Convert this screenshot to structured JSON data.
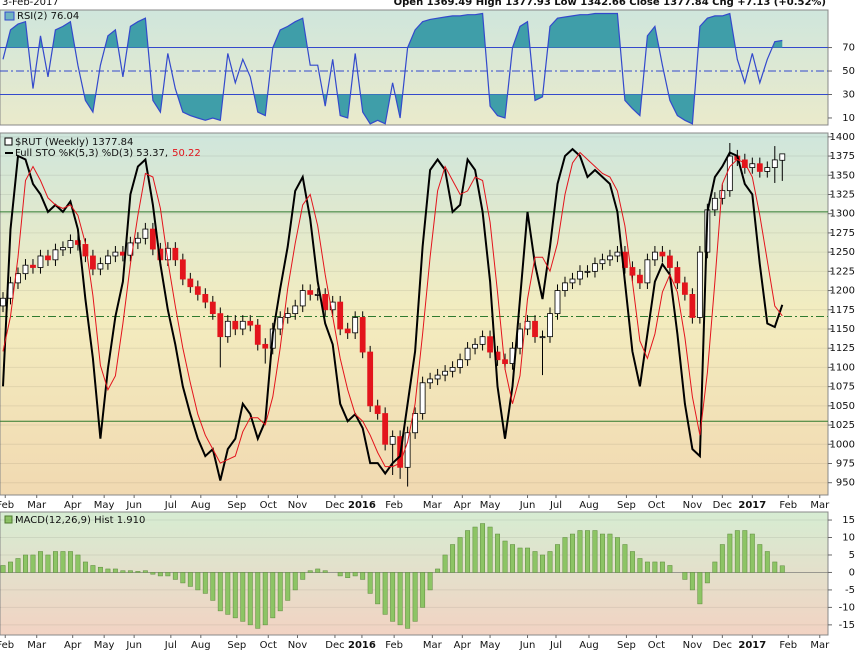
{
  "header": {
    "date": "3-Feb-2017",
    "quote": "Open 1369.49  High 1377.93  Low 1342.66  Close 1377.84  Chg +7.13 (+0.52%)"
  },
  "chart_data": [
    {
      "type": "line",
      "title": "RSI(2) 76.04",
      "color": "#3349cc",
      "fill_color": "#3f9ea9",
      "values": [
        60,
        85,
        90,
        92,
        35,
        80,
        45,
        85,
        88,
        92,
        55,
        25,
        15,
        55,
        80,
        85,
        45,
        88,
        92,
        95,
        25,
        15,
        65,
        35,
        15,
        12,
        10,
        8,
        10,
        8,
        65,
        40,
        60,
        45,
        15,
        12,
        70,
        85,
        88,
        92,
        95,
        55,
        55,
        20,
        60,
        12,
        10,
        65,
        15,
        5,
        8,
        5,
        40,
        10,
        70,
        85,
        92,
        94,
        95,
        96,
        97,
        97,
        98,
        98,
        99,
        20,
        12,
        10,
        70,
        88,
        92,
        25,
        28,
        88,
        95,
        96,
        97,
        98,
        98,
        99,
        99,
        99,
        99,
        25,
        18,
        12,
        80,
        88,
        55,
        25,
        12,
        8,
        5,
        88,
        95,
        97,
        97,
        99,
        60,
        40,
        65,
        40,
        60,
        75,
        76.04
      ],
      "levels": [
        30,
        70
      ],
      "dashed_levels": [
        50
      ],
      "ylim": [
        4,
        102
      ],
      "yticks": [
        10,
        30,
        50,
        70
      ],
      "xlim": [
        -0.4,
        110.1
      ]
    },
    {
      "type": "candlestick",
      "title": "$RUT (Weekly) 1377.84",
      "subtitle": "Full STO %K(5,3) %D(3) 53.37,",
      "subtitle_note": "50.22",
      "up_color": "#ffffff",
      "down_color": "#e3141c",
      "open": [
        1180,
        1190,
        1210,
        1222,
        1233,
        1230,
        1245,
        1240,
        1253,
        1256,
        1265,
        1260,
        1245,
        1228,
        1235,
        1245,
        1250,
        1246,
        1262,
        1268,
        1280,
        1254,
        1240,
        1255,
        1240,
        1215,
        1205,
        1195,
        1185,
        1170,
        1140,
        1160,
        1150,
        1160,
        1155,
        1130,
        1125,
        1150,
        1165,
        1170,
        1180,
        1200,
        1195,
        1195,
        1175,
        1185,
        1150,
        1145,
        1165,
        1120,
        1050,
        1040,
        1000,
        1010,
        970,
        1015,
        1040,
        1080,
        1085,
        1090,
        1095,
        1100,
        1110,
        1125,
        1130,
        1140,
        1120,
        1110,
        1105,
        1125,
        1150,
        1160,
        1140,
        1140,
        1170,
        1200,
        1210,
        1215,
        1225,
        1225,
        1235,
        1240,
        1245,
        1250,
        1230,
        1220,
        1210,
        1240,
        1250,
        1245,
        1230,
        1210,
        1195,
        1165,
        1250,
        1305,
        1320,
        1330,
        1375,
        1370,
        1360,
        1365,
        1355,
        1360,
        1369.49
      ],
      "high": [
        1198,
        1218,
        1230,
        1241,
        1241,
        1253,
        1253,
        1261,
        1264,
        1273,
        1273,
        1268,
        1253,
        1243,
        1253,
        1258,
        1258,
        1270,
        1276,
        1288,
        1288,
        1262,
        1263,
        1263,
        1248,
        1223,
        1213,
        1203,
        1193,
        1178,
        1168,
        1168,
        1168,
        1168,
        1163,
        1138,
        1158,
        1173,
        1178,
        1188,
        1208,
        1208,
        1203,
        1203,
        1193,
        1193,
        1158,
        1173,
        1173,
        1128,
        1058,
        1048,
        1018,
        1018,
        1023,
        1048,
        1088,
        1093,
        1098,
        1103,
        1108,
        1118,
        1133,
        1138,
        1148,
        1148,
        1128,
        1118,
        1133,
        1158,
        1168,
        1168,
        1148,
        1178,
        1208,
        1218,
        1223,
        1233,
        1233,
        1243,
        1248,
        1253,
        1258,
        1258,
        1238,
        1228,
        1248,
        1258,
        1258,
        1253,
        1238,
        1218,
        1203,
        1258,
        1313,
        1328,
        1338,
        1392,
        1383,
        1378,
        1373,
        1373,
        1368,
        1388,
        1377.93
      ],
      "low": [
        1172,
        1182,
        1202,
        1214,
        1222,
        1222,
        1232,
        1232,
        1245,
        1248,
        1252,
        1237,
        1220,
        1220,
        1227,
        1237,
        1238,
        1238,
        1254,
        1260,
        1246,
        1232,
        1232,
        1232,
        1207,
        1197,
        1187,
        1177,
        1162,
        1100,
        1132,
        1142,
        1142,
        1147,
        1122,
        1105,
        1117,
        1142,
        1157,
        1162,
        1172,
        1187,
        1187,
        1167,
        1167,
        1142,
        1137,
        1137,
        1112,
        1042,
        1032,
        992,
        960,
        955,
        945,
        1007,
        1032,
        1072,
        1077,
        1082,
        1087,
        1092,
        1102,
        1117,
        1122,
        1112,
        1102,
        1097,
        1097,
        1117,
        1142,
        1132,
        1090,
        1132,
        1162,
        1192,
        1202,
        1207,
        1217,
        1217,
        1227,
        1232,
        1237,
        1222,
        1212,
        1202,
        1202,
        1232,
        1237,
        1222,
        1202,
        1187,
        1157,
        1157,
        1242,
        1297,
        1312,
        1322,
        1362,
        1352,
        1352,
        1347,
        1347,
        1340,
        1342.66
      ],
      "close": [
        1190,
        1210,
        1222,
        1233,
        1230,
        1245,
        1240,
        1253,
        1256,
        1265,
        1260,
        1245,
        1228,
        1235,
        1245,
        1250,
        1246,
        1262,
        1268,
        1280,
        1254,
        1240,
        1255,
        1240,
        1215,
        1205,
        1195,
        1185,
        1170,
        1140,
        1160,
        1150,
        1160,
        1155,
        1130,
        1125,
        1150,
        1165,
        1170,
        1180,
        1200,
        1195,
        1195,
        1175,
        1185,
        1150,
        1145,
        1165,
        1120,
        1050,
        1040,
        1000,
        1010,
        970,
        1015,
        1040,
        1080,
        1085,
        1090,
        1095,
        1100,
        1110,
        1125,
        1130,
        1140,
        1120,
        1110,
        1105,
        1125,
        1150,
        1160,
        1140,
        1140,
        1170,
        1200,
        1210,
        1215,
        1225,
        1225,
        1235,
        1240,
        1245,
        1250,
        1230,
        1220,
        1210,
        1240,
        1250,
        1245,
        1230,
        1210,
        1195,
        1165,
        1250,
        1305,
        1320,
        1330,
        1375,
        1370,
        1360,
        1365,
        1355,
        1360,
        1370,
        1377.84
      ],
      "series": [
        {
          "color": "#000000",
          "axis": "y2",
          "values": [
            30,
            75,
            96,
            95,
            88,
            85,
            80,
            82,
            80,
            83,
            75,
            55,
            38,
            15,
            35,
            50,
            60,
            85,
            93,
            95,
            82,
            65,
            52,
            42,
            30,
            22,
            15,
            10,
            12,
            3,
            12,
            15,
            25,
            22,
            15,
            20,
            45,
            58,
            70,
            86,
            90,
            78,
            60,
            48,
            42,
            25,
            20,
            22,
            18,
            8,
            8,
            5,
            8,
            10,
            25,
            40,
            70,
            92,
            95,
            92,
            80,
            82,
            95,
            92,
            80,
            60,
            30,
            15,
            30,
            55,
            80,
            65,
            55,
            70,
            88,
            96,
            98,
            96,
            90,
            92,
            90,
            88,
            80,
            60,
            40,
            30,
            45,
            60,
            65,
            62,
            45,
            25,
            12,
            10,
            80,
            90,
            93,
            97,
            96,
            88,
            85,
            65,
            48,
            47,
            53.37
          ]
        },
        {
          "color": "#e3141c",
          "axis": "y2",
          "values": [
            40,
            50,
            67,
            89,
            93,
            89,
            84,
            82,
            81,
            82,
            79,
            71,
            56,
            36,
            29,
            33,
            48,
            65,
            79,
            91,
            90,
            81,
            66,
            53,
            41,
            31,
            22,
            16,
            12,
            8,
            9,
            10,
            17,
            21,
            21,
            19,
            27,
            41,
            58,
            71,
            82,
            85,
            76,
            62,
            50,
            38,
            29,
            22,
            20,
            16,
            11,
            7,
            7,
            8,
            14,
            25,
            45,
            67,
            86,
            93,
            89,
            85,
            86,
            90,
            89,
            77,
            57,
            35,
            25,
            33,
            55,
            67,
            67,
            63,
            71,
            85,
            94,
            97,
            95,
            93,
            91,
            90,
            86,
            76,
            60,
            43,
            38,
            45,
            57,
            62,
            57,
            44,
            27,
            16,
            34,
            60,
            88,
            93,
            95,
            94,
            90,
            79,
            66,
            53,
            50.22
          ]
        }
      ],
      "levels": [
        20,
        80
      ],
      "dashed_levels": [
        50
      ],
      "ylim": [
        934,
        1405
      ],
      "yticks": [
        950,
        975,
        1000,
        1025,
        1050,
        1075,
        1100,
        1125,
        1150,
        1175,
        1200,
        1225,
        1250,
        1275,
        1300,
        1325,
        1350,
        1375,
        1400
      ],
      "y2lim": [
        -1.15,
        102.6
      ],
      "xlim": [
        -0.4,
        110.1
      ],
      "xticks": [
        {
          "value": 0.3,
          "label": "Feb"
        },
        {
          "value": 4.5,
          "label": "Mar"
        },
        {
          "value": 9.3,
          "label": "Apr"
        },
        {
          "value": 13.5,
          "label": "May"
        },
        {
          "value": 17.5,
          "label": "Jun"
        },
        {
          "value": 22.4,
          "label": "Jul"
        },
        {
          "value": 26.4,
          "label": "Aug"
        },
        {
          "value": 31.2,
          "label": "Sep"
        },
        {
          "value": 35.4,
          "label": "Oct"
        },
        {
          "value": 39.3,
          "label": "Nov"
        },
        {
          "value": 44.3,
          "label": "Dec"
        },
        {
          "value": 47.9,
          "label": "2016"
        },
        {
          "value": 52.2,
          "label": "Feb"
        },
        {
          "value": 57.3,
          "label": "Mar"
        },
        {
          "value": 61.3,
          "label": "Apr"
        },
        {
          "value": 65,
          "label": "May"
        },
        {
          "value": 70,
          "label": "Jun"
        },
        {
          "value": 73.8,
          "label": "Jul"
        },
        {
          "value": 78.2,
          "label": "Aug"
        },
        {
          "value": 83.2,
          "label": "Sep"
        },
        {
          "value": 87.2,
          "label": "Oct"
        },
        {
          "value": 92,
          "label": "Nov"
        },
        {
          "value": 96,
          "label": "Dec"
        },
        {
          "value": 100,
          "label": "2017"
        },
        {
          "value": 104.8,
          "label": "Feb"
        },
        {
          "value": 109,
          "label": "Mar"
        }
      ]
    },
    {
      "type": "bar",
      "title": "MACD(12,26,9) Hist 1.910",
      "color": "#8dc465",
      "values": [
        2,
        3,
        4,
        5,
        5,
        6,
        5,
        6,
        6,
        6,
        5,
        3,
        2,
        1.5,
        1,
        1,
        0.5,
        0.5,
        0.3,
        0.5,
        -0.5,
        -1,
        -1,
        -2,
        -3,
        -4,
        -5,
        -6,
        -8,
        -11,
        -12,
        -13,
        -14,
        -15,
        -16,
        -15,
        -13,
        -11,
        -8,
        -5,
        -2,
        0.5,
        1,
        0.5,
        0,
        -1,
        -1.5,
        -1,
        -2,
        -6,
        -9,
        -12,
        -14,
        -15,
        -16,
        -14,
        -10,
        -5,
        1,
        5,
        8,
        10,
        12,
        13,
        14,
        13,
        11,
        9,
        8,
        7,
        7,
        6,
        5,
        6,
        8,
        10,
        11,
        12,
        12,
        12,
        11,
        11,
        10,
        8,
        6,
        4,
        3,
        3,
        3,
        2,
        0,
        -2,
        -5,
        -9,
        -3,
        3,
        8,
        11,
        12,
        12,
        11,
        8,
        6,
        3,
        1.91
      ],
      "ylim": [
        -17.9,
        17.3
      ],
      "yticks": [
        -15,
        -10,
        -5,
        0,
        5,
        10,
        15
      ],
      "xlim": [
        -0.4,
        110.1
      ],
      "xticks": [
        {
          "value": 0.3,
          "label": "Feb"
        },
        {
          "value": 4.5,
          "label": "Mar"
        },
        {
          "value": 9.3,
          "label": "Apr"
        },
        {
          "value": 13.5,
          "label": "May"
        },
        {
          "value": 17.5,
          "label": "Jun"
        },
        {
          "value": 22.4,
          "label": "Jul"
        },
        {
          "value": 26.4,
          "label": "Aug"
        },
        {
          "value": 31.2,
          "label": "Sep"
        },
        {
          "value": 35.4,
          "label": "Oct"
        },
        {
          "value": 39.3,
          "label": "Nov"
        },
        {
          "value": 44.3,
          "label": "Dec"
        },
        {
          "value": 47.9,
          "label": "2016"
        },
        {
          "value": 52.2,
          "label": "Feb"
        },
        {
          "value": 57.3,
          "label": "Mar"
        },
        {
          "value": 61.3,
          "label": "Apr"
        },
        {
          "value": 65,
          "label": "May"
        },
        {
          "value": 70,
          "label": "Jun"
        },
        {
          "value": 73.8,
          "label": "Jul"
        },
        {
          "value": 78.2,
          "label": "Aug"
        },
        {
          "value": 83.2,
          "label": "Sep"
        },
        {
          "value": 87.2,
          "label": "Oct"
        },
        {
          "value": 92,
          "label": "Nov"
        },
        {
          "value": 96,
          "label": "Dec"
        },
        {
          "value": 100,
          "label": "2017"
        },
        {
          "value": 104.8,
          "label": "Feb"
        },
        {
          "value": 109,
          "label": "Mar"
        }
      ]
    }
  ]
}
